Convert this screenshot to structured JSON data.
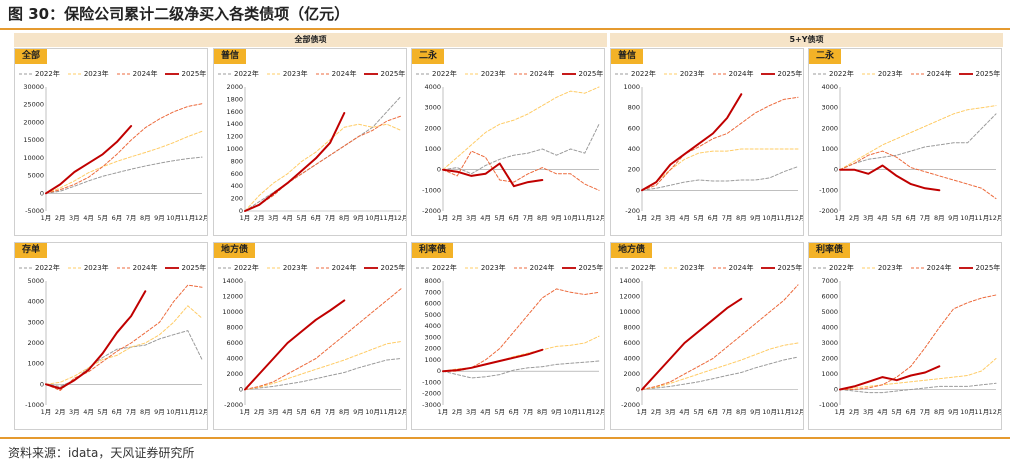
{
  "figure": {
    "title": "图 30：保险公司累计二级净买入各类债项（亿元）",
    "source": "资料来源：idata，天风证券研究所",
    "groups": [
      "全部债项",
      "5+Y债项"
    ]
  },
  "series_styles": [
    {
      "name": "2022年",
      "color": "#9b9b9b",
      "dash": "3,2",
      "width": 1
    },
    {
      "name": "2023年",
      "color": "#ffcc66",
      "dash": "3,2",
      "width": 1
    },
    {
      "name": "2024年",
      "color": "#ec6a3c",
      "dash": "3,2",
      "width": 1
    },
    {
      "name": "2025年",
      "color": "#c00000",
      "dash": "",
      "width": 2
    }
  ],
  "chart_data": [
    {
      "type": "line",
      "title": "全部",
      "group": "全部债项",
      "ylim": [
        -5000,
        30000
      ],
      "yticks": [
        -5000,
        0,
        5000,
        10000,
        15000,
        20000,
        25000,
        30000
      ],
      "months": [
        "1月",
        "2月",
        "3月",
        "4月",
        "5月",
        "6月",
        "7月",
        "8月",
        "9月",
        "10月",
        "11月",
        "12月"
      ],
      "series": [
        {
          "name": "2022年",
          "values": [
            0,
            600,
            2000,
            3500,
            4800,
            5800,
            6800,
            7700,
            8500,
            9200,
            9800,
            10200
          ]
        },
        {
          "name": "2023年",
          "values": [
            0,
            1500,
            3500,
            5800,
            7500,
            9000,
            10300,
            11500,
            12800,
            14300,
            16000,
            17500
          ]
        },
        {
          "name": "2024年",
          "values": [
            0,
            1000,
            2500,
            4500,
            7500,
            11000,
            15000,
            18500,
            21000,
            23000,
            24500,
            25300
          ]
        },
        {
          "name": "2025年",
          "values": [
            0,
            2500,
            6000,
            8500,
            11000,
            14500,
            19000
          ]
        }
      ]
    },
    {
      "type": "line",
      "title": "普信",
      "group": "全部债项",
      "ylim": [
        0,
        2000
      ],
      "yticks": [
        0,
        200,
        400,
        600,
        800,
        1000,
        1200,
        1400,
        1600,
        1800,
        2000
      ],
      "months": [
        "1月",
        "2月",
        "3月",
        "4月",
        "5月",
        "6月",
        "7月",
        "8月",
        "9月",
        "10月",
        "11月",
        "12月"
      ],
      "series": [
        {
          "name": "2022年",
          "values": [
            0,
            150,
            300,
            450,
            600,
            750,
            900,
            1050,
            1200,
            1350,
            1600,
            1850
          ]
        },
        {
          "name": "2023年",
          "values": [
            0,
            250,
            450,
            600,
            800,
            950,
            1150,
            1350,
            1400,
            1350,
            1400,
            1300
          ]
        },
        {
          "name": "2024年",
          "values": [
            0,
            100,
            250,
            450,
            600,
            750,
            900,
            1050,
            1200,
            1300,
            1450,
            1530
          ]
        },
        {
          "name": "2025年",
          "values": [
            0,
            100,
            280,
            450,
            650,
            850,
            1100,
            1580
          ]
        }
      ]
    },
    {
      "type": "line",
      "title": "二永",
      "group": "全部债项",
      "ylim": [
        -2000,
        4000
      ],
      "yticks": [
        -2000,
        -1000,
        0,
        1000,
        2000,
        3000,
        4000
      ],
      "months": [
        "1月",
        "2月",
        "3月",
        "4月",
        "5月",
        "6月",
        "7月",
        "8月",
        "9月",
        "10月",
        "11月",
        "12月"
      ],
      "series": [
        {
          "name": "2022年",
          "values": [
            0,
            100,
            -200,
            200,
            500,
            700,
            800,
            1000,
            700,
            1000,
            800,
            2200
          ]
        },
        {
          "name": "2023年",
          "values": [
            0,
            600,
            1200,
            1800,
            2200,
            2400,
            2700,
            3100,
            3500,
            3800,
            3700,
            4000
          ]
        },
        {
          "name": "2024年",
          "values": [
            0,
            -300,
            900,
            600,
            -500,
            -600,
            -200,
            100,
            -200,
            -200,
            -700,
            -1000
          ]
        },
        {
          "name": "2025年",
          "values": [
            0,
            -100,
            -300,
            -200,
            300,
            -800,
            -600,
            -500
          ]
        }
      ]
    },
    {
      "type": "line",
      "title": "普信",
      "group": "5+Y债项",
      "ylim": [
        -200,
        1000
      ],
      "yticks": [
        -200,
        0,
        200,
        400,
        600,
        800,
        1000
      ],
      "months": [
        "1月",
        "2月",
        "3月",
        "4月",
        "5月",
        "6月",
        "7月",
        "8月",
        "9月",
        "10月",
        "11月",
        "12月"
      ],
      "series": [
        {
          "name": "2022年",
          "values": [
            0,
            20,
            50,
            80,
            100,
            90,
            90,
            100,
            100,
            120,
            180,
            230
          ]
        },
        {
          "name": "2023年",
          "values": [
            0,
            80,
            200,
            300,
            360,
            380,
            380,
            400,
            400,
            400,
            400,
            400
          ]
        },
        {
          "name": "2024年",
          "values": [
            0,
            50,
            200,
            350,
            420,
            500,
            550,
            650,
            750,
            820,
            880,
            900
          ]
        },
        {
          "name": "2025年",
          "values": [
            0,
            80,
            250,
            350,
            450,
            550,
            700,
            930
          ]
        }
      ]
    },
    {
      "type": "line",
      "title": "二永",
      "group": "5+Y债项",
      "ylim": [
        -2000,
        4000
      ],
      "yticks": [
        -2000,
        -1000,
        0,
        1000,
        2000,
        3000,
        4000
      ],
      "months": [
        "1月",
        "2月",
        "3月",
        "4月",
        "5月",
        "6月",
        "7月",
        "8月",
        "9月",
        "10月",
        "11月",
        "12月"
      ],
      "series": [
        {
          "name": "2022年",
          "values": [
            0,
            300,
            500,
            600,
            700,
            900,
            1100,
            1200,
            1300,
            1300,
            2000,
            2700
          ]
        },
        {
          "name": "2023年",
          "values": [
            0,
            400,
            800,
            1200,
            1500,
            1800,
            2100,
            2400,
            2700,
            2900,
            3000,
            3100
          ]
        },
        {
          "name": "2024年",
          "values": [
            0,
            300,
            700,
            900,
            600,
            100,
            -100,
            -300,
            -500,
            -700,
            -900,
            -1400
          ]
        },
        {
          "name": "2025年",
          "values": [
            0,
            0,
            -200,
            200,
            -300,
            -700,
            -900,
            -1000
          ]
        }
      ]
    },
    {
      "type": "line",
      "title": "存单",
      "group": "全部债项",
      "ylim": [
        -1000,
        5000
      ],
      "yticks": [
        -1000,
        0,
        1000,
        2000,
        3000,
        4000,
        5000
      ],
      "months": [
        "1月",
        "2月",
        "3月",
        "4月",
        "5月",
        "6月",
        "7月",
        "8月",
        "9月",
        "10月",
        "11月",
        "12月"
      ],
      "series": [
        {
          "name": "2022年",
          "values": [
            0,
            -100,
            200,
            800,
            1300,
            1700,
            1800,
            1900,
            2200,
            2400,
            2600,
            1200
          ]
        },
        {
          "name": "2023年",
          "values": [
            0,
            100,
            400,
            800,
            1200,
            1400,
            1800,
            2000,
            2400,
            3000,
            3800,
            3200
          ]
        },
        {
          "name": "2024年",
          "values": [
            0,
            -300,
            300,
            600,
            1100,
            1600,
            2000,
            2500,
            3000,
            4000,
            4800,
            4700
          ]
        },
        {
          "name": "2025年",
          "values": [
            0,
            -200,
            200,
            700,
            1500,
            2500,
            3300,
            4500
          ]
        }
      ]
    },
    {
      "type": "line",
      "title": "地方债",
      "group": "全部债项",
      "ylim": [
        -2000,
        14000
      ],
      "yticks": [
        -2000,
        0,
        2000,
        4000,
        6000,
        8000,
        10000,
        12000,
        14000
      ],
      "months": [
        "1月",
        "2月",
        "3月",
        "4月",
        "5月",
        "6月",
        "7月",
        "8月",
        "9月",
        "10月",
        "11月",
        "12月"
      ],
      "series": [
        {
          "name": "2022年",
          "values": [
            0,
            200,
            400,
            700,
            1000,
            1400,
            1800,
            2200,
            2800,
            3300,
            3800,
            4000
          ]
        },
        {
          "name": "2023年",
          "values": [
            0,
            300,
            800,
            1400,
            2000,
            2600,
            3200,
            3800,
            4500,
            5200,
            5900,
            6200
          ]
        },
        {
          "name": "2024年",
          "values": [
            0,
            400,
            1000,
            2000,
            3000,
            4000,
            5500,
            7000,
            8500,
            10000,
            11500,
            13000
          ]
        },
        {
          "name": "2025年",
          "values": [
            0,
            2000,
            4000,
            6000,
            7500,
            9000,
            10200,
            11500
          ]
        }
      ]
    },
    {
      "type": "line",
      "title": "利率债",
      "group": "全部债项",
      "ylim": [
        -3000,
        8000
      ],
      "yticks": [
        -3000,
        -2000,
        -1000,
        0,
        1000,
        2000,
        3000,
        4000,
        5000,
        6000,
        7000,
        8000
      ],
      "months": [
        "1月",
        "2月",
        "3月",
        "4月",
        "5月",
        "6月",
        "7月",
        "8月",
        "9月",
        "10月",
        "11月",
        "12月"
      ],
      "series": [
        {
          "name": "2022年",
          "values": [
            0,
            -300,
            -600,
            -500,
            -300,
            100,
            300,
            400,
            600,
            700,
            800,
            900
          ]
        },
        {
          "name": "2023年",
          "values": [
            0,
            200,
            300,
            600,
            900,
            1300,
            1600,
            1900,
            2200,
            2300,
            2500,
            3100
          ]
        },
        {
          "name": "2024年",
          "values": [
            0,
            0,
            300,
            1000,
            2000,
            3500,
            5000,
            6500,
            7300,
            7000,
            6800,
            7000
          ]
        },
        {
          "name": "2025年",
          "values": [
            0,
            100,
            300,
            600,
            900,
            1200,
            1500,
            1900
          ]
        }
      ]
    },
    {
      "type": "line",
      "title": "地方债",
      "group": "5+Y债项",
      "ylim": [
        -2000,
        14000
      ],
      "yticks": [
        -2000,
        0,
        2000,
        4000,
        6000,
        8000,
        10000,
        12000,
        14000
      ],
      "months": [
        "1月",
        "2月",
        "3月",
        "4月",
        "5月",
        "6月",
        "7月",
        "8月",
        "9月",
        "10月",
        "11月",
        "12月"
      ],
      "series": [
        {
          "name": "2022年",
          "values": [
            0,
            200,
            400,
            700,
            1000,
            1400,
            1800,
            2200,
            2800,
            3300,
            3800,
            4200
          ]
        },
        {
          "name": "2023年",
          "values": [
            0,
            300,
            800,
            1400,
            2000,
            2600,
            3200,
            3800,
            4500,
            5200,
            5700,
            6000
          ]
        },
        {
          "name": "2024年",
          "values": [
            0,
            400,
            1000,
            2000,
            3000,
            4000,
            5500,
            7000,
            8500,
            10000,
            11500,
            13500
          ]
        },
        {
          "name": "2025年",
          "values": [
            0,
            2000,
            4000,
            6000,
            7500,
            9000,
            10500,
            11700
          ]
        }
      ]
    },
    {
      "type": "line",
      "title": "利率债",
      "group": "5+Y债项",
      "ylim": [
        -1000,
        7000
      ],
      "yticks": [
        -1000,
        0,
        1000,
        2000,
        3000,
        4000,
        5000,
        6000,
        7000
      ],
      "months": [
        "1月",
        "2月",
        "3月",
        "4月",
        "5月",
        "6月",
        "7月",
        "8月",
        "9月",
        "10月",
        "11月",
        "12月"
      ],
      "series": [
        {
          "name": "2022年",
          "values": [
            0,
            -100,
            -200,
            -200,
            -100,
            0,
            100,
            200,
            200,
            200,
            300,
            400
          ]
        },
        {
          "name": "2023年",
          "values": [
            0,
            100,
            200,
            300,
            400,
            500,
            600,
            700,
            800,
            900,
            1200,
            2000
          ]
        },
        {
          "name": "2024年",
          "values": [
            0,
            0,
            100,
            300,
            800,
            1500,
            2700,
            4000,
            5200,
            5600,
            5900,
            6100
          ]
        },
        {
          "name": "2025年",
          "values": [
            0,
            200,
            500,
            800,
            600,
            900,
            1100,
            1500
          ]
        }
      ]
    }
  ]
}
